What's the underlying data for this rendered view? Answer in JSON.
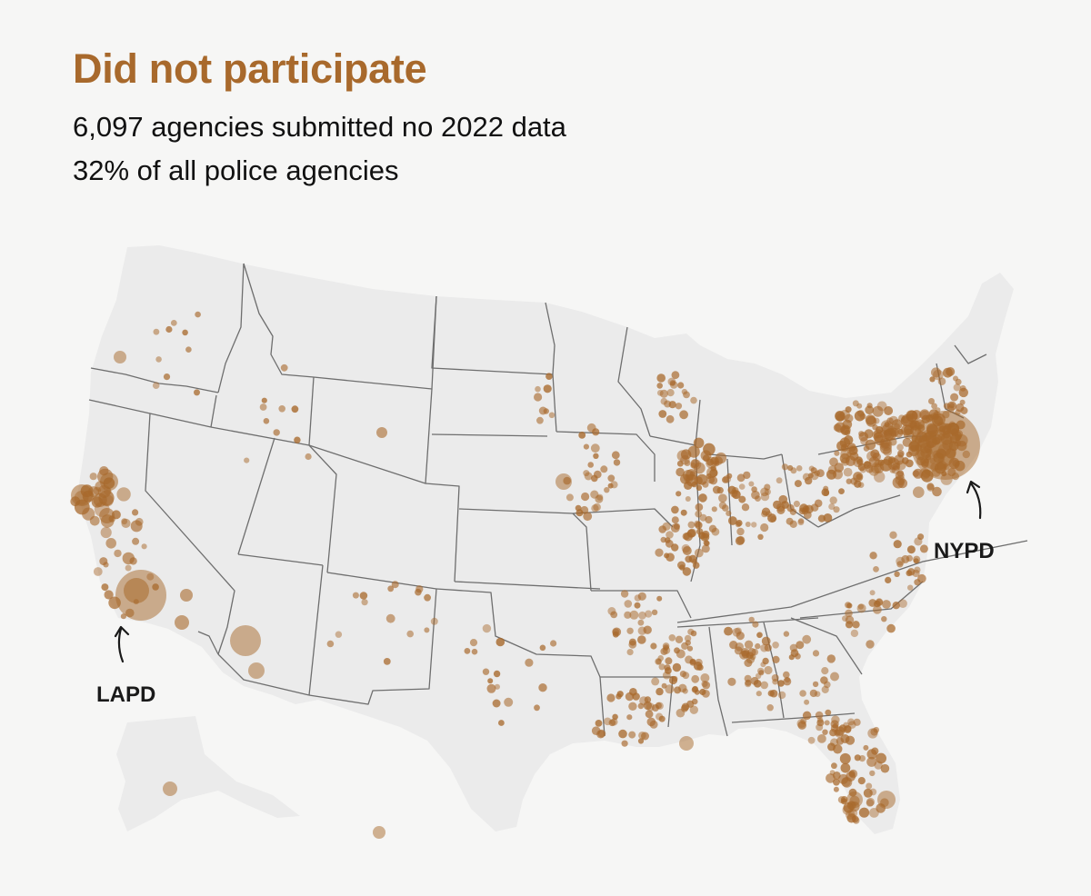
{
  "header": {
    "title": "Did not participate",
    "subtitle_line1": "6,097 agencies submitted no 2022 data",
    "subtitle_line2": "32% of all police agencies"
  },
  "annotations": {
    "la_label": "LAPD",
    "ny_label": "NYPD"
  },
  "colors": {
    "accent": "#a8692c",
    "dot": "#a8692c",
    "land": "#ebebeb",
    "border": "#6e6e6e",
    "background": "#f6f6f5"
  }
}
